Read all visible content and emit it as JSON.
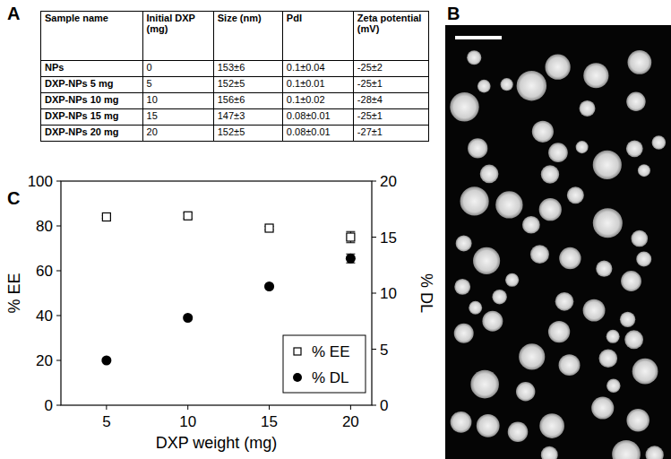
{
  "panel_labels": [
    "A",
    "B",
    "C"
  ],
  "table": {
    "header": [
      "Sample name",
      "Initial DXP (mg)",
      "Size (nm)",
      "PdI",
      "Zeta potential (mV)"
    ],
    "rows": [
      [
        "NPs",
        "0",
        "153±6",
        "0.1±0.04",
        "-25±2"
      ],
      [
        "DXP-NPs 5 mg",
        "5",
        "152±5",
        "0.1±0.01",
        "-25±1"
      ],
      [
        "DXP-NPs 10 mg",
        "10",
        "156±6",
        "0.1±0.02",
        "-28±4"
      ],
      [
        "DXP-NPs 15 mg",
        "15",
        "147±3",
        "0.08±0.01",
        "-25±1"
      ],
      [
        "DXP-NPs 20 mg",
        "20",
        "152±5",
        "0.08±0.01",
        "-27±1"
      ]
    ]
  },
  "chart_data": {
    "type": "scatter",
    "x_label": "DXP weight (mg)",
    "y_label": "% EE",
    "y2_label": "% DL",
    "x": [
      5,
      10,
      15,
      20
    ],
    "xlim": [
      2.2,
      21.3
    ],
    "xticks": [
      5,
      10,
      15,
      20
    ],
    "ylim": [
      0,
      100
    ],
    "yticks": [
      0,
      20,
      40,
      60,
      80,
      100
    ],
    "y2lim": [
      0,
      20
    ],
    "y2ticks": [
      0,
      5,
      10,
      15,
      20
    ],
    "legend": "bottom-right",
    "grid": false,
    "series": [
      {
        "name": "% EE",
        "color": "#000000",
        "marker": "square-open",
        "values": [
          84,
          84.5,
          79,
          75
        ],
        "errors": [
          0.6,
          1.2,
          0.8,
          2.5
        ]
      },
      {
        "name": "% DL",
        "color": "#000000",
        "marker": "circle",
        "axis": "y2",
        "values": [
          4.0,
          7.8,
          10.6,
          13.1
        ],
        "errors": [
          0.1,
          0.1,
          0.1,
          0.4
        ]
      }
    ]
  }
}
